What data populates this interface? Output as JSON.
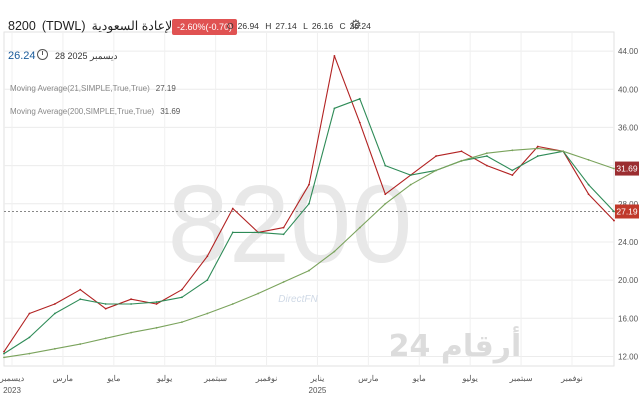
{
  "header": {
    "symbol": "8200",
    "ticker": "(TDWL)",
    "name": "الإعادة السعودية",
    "change_badge": "-2.60%(-0.70)",
    "ohlc": {
      "o_label": "O",
      "o": "26.94",
      "h_label": "H",
      "h": "27.14",
      "l_label": "L",
      "l": "26.16",
      "c_label": "C",
      "c": "26.24"
    },
    "last_price": "26.24",
    "date": "28 2025 ديسمبر"
  },
  "indicators": [
    {
      "label": "Moving Average(21,SIMPLE,True,True)",
      "value": "27.19"
    },
    {
      "label": "Moving Average(200,SIMPLE,True,True)",
      "value": "31.69"
    }
  ],
  "watermark": {
    "symbol": "8200",
    "brand": "DirectFN",
    "logo_text": "أرقام 24"
  },
  "colors": {
    "price": "#b22222",
    "ma21": "#2e8b57",
    "ma200": "#7aa35c",
    "ma200_label": "#9b2d30",
    "ma21_label": "#c0392b",
    "badge": "#e05252"
  },
  "chart_data": {
    "type": "line",
    "x": [
      "2023-12",
      "2024-01",
      "2024-02",
      "2024-03",
      "2024-04",
      "2024-05",
      "2024-06",
      "2024-07",
      "2024-08",
      "2024-09",
      "2024-10",
      "2024-11",
      "2024-12",
      "2025-01",
      "2025-02",
      "2025-03",
      "2025-04",
      "2025-05",
      "2025-06",
      "2025-07",
      "2025-08",
      "2025-09",
      "2025-10",
      "2025-11",
      "2025-12"
    ],
    "series": [
      {
        "name": "price",
        "values": [
          12.5,
          16.5,
          17.5,
          19.0,
          17.0,
          18.0,
          17.5,
          19.0,
          22.5,
          27.5,
          25.0,
          25.5,
          30.0,
          43.5,
          36.5,
          29.0,
          31.0,
          33.0,
          33.5,
          32.0,
          31.0,
          34.0,
          33.5,
          29.0,
          26.24
        ]
      },
      {
        "name": "Moving Average(21,SIMPLE,True,True)",
        "values": [
          12.3,
          14.0,
          16.5,
          18.0,
          17.5,
          17.5,
          17.7,
          18.2,
          20.0,
          25.0,
          25.0,
          24.8,
          28.0,
          38.0,
          39.0,
          32.0,
          31.0,
          31.5,
          32.5,
          33.0,
          31.5,
          33.0,
          33.5,
          30.0,
          27.19
        ]
      },
      {
        "name": "Moving Average(200,SIMPLE,True,True)",
        "values": [
          11.9,
          12.3,
          12.8,
          13.3,
          13.9,
          14.5,
          15.0,
          15.6,
          16.5,
          17.5,
          18.6,
          19.8,
          21.0,
          23.0,
          25.5,
          28.0,
          30.0,
          31.5,
          32.5,
          33.3,
          33.6,
          33.8,
          33.5,
          32.6,
          31.69
        ]
      }
    ],
    "x_tick_labels": [
      "ديسمبر",
      "مارس",
      "مايو",
      "يوليو",
      "سبتمبر",
      "نوفمبر",
      "يناير",
      "مارس",
      "مايو",
      "يوليو",
      "سبتمبر",
      "نوفمبر"
    ],
    "x_year_labels": [
      "2023",
      "2025"
    ],
    "y_ticks": [
      "44.00",
      "40.00",
      "36.00",
      "32.00",
      "28.00",
      "24.00",
      "20.00",
      "16.00",
      "12.00"
    ],
    "reference_line": 27.19,
    "ylim": [
      11,
      46
    ],
    "y_axis_position": "right",
    "grid": true
  }
}
